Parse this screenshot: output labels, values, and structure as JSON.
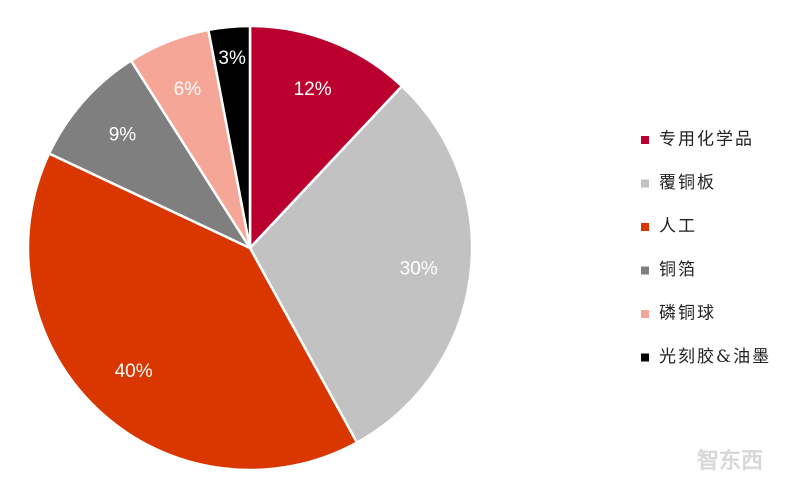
{
  "chart_data": {
    "type": "pie",
    "categories": [
      "专用化学品",
      "覆铜板",
      "人工",
      "铜箔",
      "磷铜球",
      "光刻胶&油墨"
    ],
    "values": [
      12,
      30,
      40,
      9,
      6,
      3
    ],
    "value_labels": [
      "12%",
      "30%",
      "40%",
      "9%",
      "6%",
      "3%"
    ],
    "colors": [
      "#bb0030",
      "#c2c2c2",
      "#d93600",
      "#7f7f7f",
      "#f6a697",
      "#000000"
    ],
    "legend": "right"
  },
  "watermark": "智东西"
}
